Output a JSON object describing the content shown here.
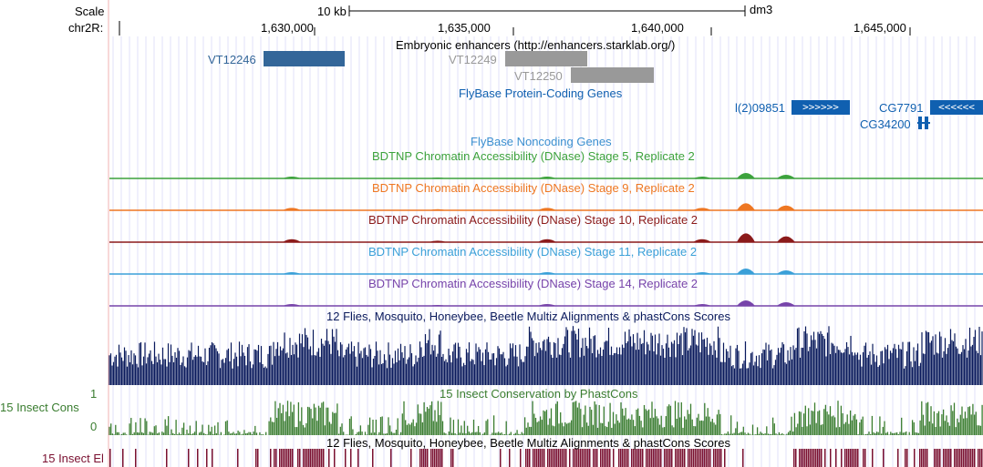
{
  "ruler": {
    "scale_label": "Scale",
    "scale_bar_label": "10 kb",
    "assembly": "dm3",
    "chrom_label": "chr2R:",
    "ticks": [
      "1,630,000",
      "1,635,000",
      "1,640,000",
      "1,645,000"
    ]
  },
  "tracks": {
    "enhancers": {
      "title": "Embryonic enhancers (http://enhancers.starklab.org/)",
      "items": [
        {
          "name": "VT12246",
          "color": "#336699"
        },
        {
          "name": "VT12249",
          "color": "#999999"
        },
        {
          "name": "VT12250",
          "color": "#999999"
        }
      ]
    },
    "flybase_coding": {
      "title": "FlyBase Protein-Coding Genes",
      "color": "#1060b0",
      "genes": [
        {
          "name": "l(2)09851",
          "strand": ">>>>>>"
        },
        {
          "name": "CG7791",
          "strand": "<<<<<<"
        },
        {
          "name": "CG34200",
          "strand": ""
        }
      ]
    },
    "flybase_noncoding": {
      "title": "FlyBase Noncoding Genes",
      "color": "#3b8fd0"
    },
    "dnase": [
      {
        "title": "BDTNP Chromatin Accessibility (DNase) Stage 5, Replicate 2",
        "color": "#3ca23c"
      },
      {
        "title": "BDTNP Chromatin Accessibility (DNase) Stage 9, Replicate 2",
        "color": "#ee7722"
      },
      {
        "title": "BDTNP Chromatin Accessibility (DNase) Stage 10, Replicate 2",
        "color": "#8b1a1a"
      },
      {
        "title": "BDTNP Chromatin Accessibility (DNase) Stage 11, Replicate 2",
        "color": "#3aa0d8"
      },
      {
        "title": "BDTNP Chromatin Accessibility (DNase) Stage 14, Replicate 2",
        "color": "#7744aa"
      }
    ],
    "multiz": {
      "title": "12 Flies, Mosquito, Honeybee, Beetle Multiz Alignments & phastCons Scores",
      "color": "#0a1a5c"
    },
    "cons": {
      "title": "15 Insect Conservation by PhastCons",
      "left_label": "15 Insect Cons",
      "y_max": "1",
      "y_min": "0",
      "color": "#3a7d30"
    },
    "elements": {
      "title": "12 Flies, Mosquito, Honeybee, Beetle Multiz Alignments & phastCons Scores",
      "left_label": "15 Insect El",
      "color": "#7a1030"
    }
  }
}
